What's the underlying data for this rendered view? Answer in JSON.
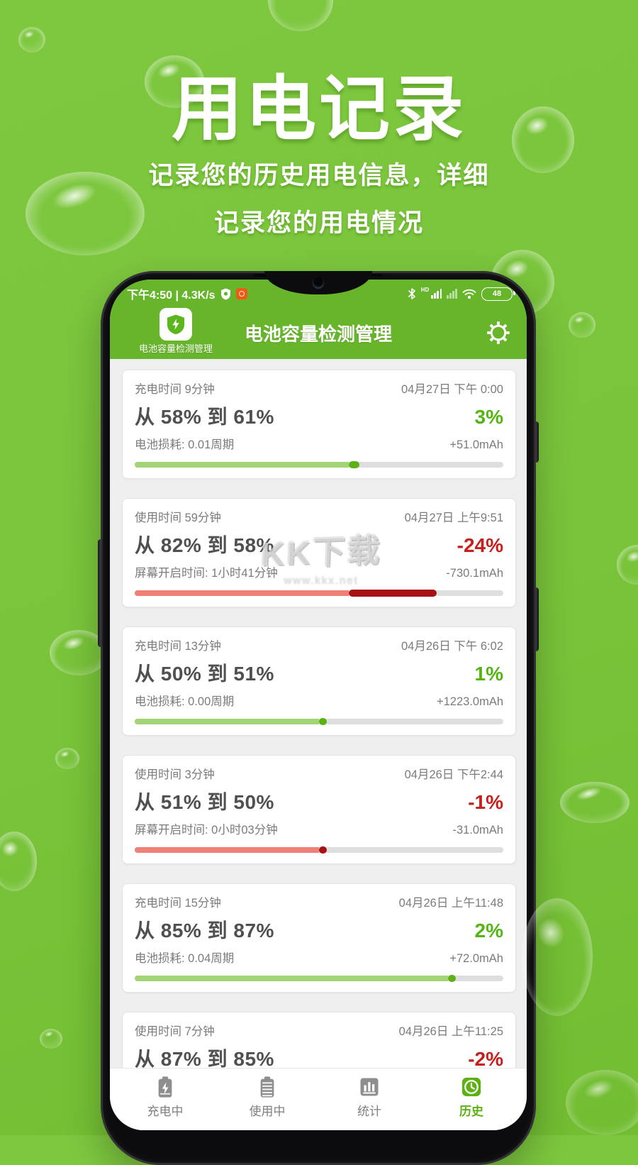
{
  "poster": {
    "title": "用电记录",
    "subtitle_line1": "记录您的历史用电信息，详细",
    "subtitle_line2": "记录您的用电情况",
    "bg_color": "#79c43a"
  },
  "watermark": {
    "line1": "KK下载",
    "line2": "www.kkx.net"
  },
  "phone": {
    "status_bar": {
      "left_text": "下午4:50 | 4.3K/s",
      "hd_label": "HD",
      "battery_level": "48"
    },
    "app_bar": {
      "title": "电池容量检测管理",
      "launcher_caption": "电池容量检测管理"
    },
    "records": [
      {
        "duration": "充电时间 9分钟",
        "date": "04月27日 下午 0:00",
        "range": "从 58% 到 61%",
        "delta": "3%",
        "trend": "up",
        "detail": "电池损耗: 0.01周期",
        "amount": "+51.0mAh",
        "from": 58,
        "to": 61,
        "bar": true
      },
      {
        "duration": "使用时间 59分钟",
        "date": "04月27日 上午9:51",
        "range": "从 82% 到 58%",
        "delta": "-24%",
        "trend": "down",
        "detail": "屏幕开启时间: 1小时41分钟",
        "amount": "-730.1mAh",
        "from": 82,
        "to": 58,
        "bar": true
      },
      {
        "duration": "充电时间 13分钟",
        "date": "04月26日 下午 6:02",
        "range": "从 50% 到 51%",
        "delta": "1%",
        "trend": "up",
        "detail": "电池损耗: 0.00周期",
        "amount": "+1223.0mAh",
        "from": 50,
        "to": 51,
        "bar": true
      },
      {
        "duration": "使用时间 3分钟",
        "date": "04月26日 下午2:44",
        "range": "从 51% 到 50%",
        "delta": "-1%",
        "trend": "down",
        "detail": "屏幕开启时间: 0小时03分钟",
        "amount": "-31.0mAh",
        "from": 51,
        "to": 50,
        "bar": true
      },
      {
        "duration": "充电时间 15分钟",
        "date": "04月26日 上午11:48",
        "range": "从 85% 到 87%",
        "delta": "2%",
        "trend": "up",
        "detail": "电池损耗: 0.04周期",
        "amount": "+72.0mAh",
        "from": 85,
        "to": 87,
        "bar": true
      },
      {
        "duration": "使用时间 7分钟",
        "date": "04月26日 上午11:25",
        "range": "从 87% 到 85%",
        "delta": "-2%",
        "trend": "down",
        "detail": "",
        "amount": "",
        "from": 87,
        "to": 85,
        "bar": false
      }
    ],
    "nav": [
      {
        "label": "充电中",
        "icon": "battery-charging-icon",
        "active": false
      },
      {
        "label": "使用中",
        "icon": "battery-icon",
        "active": false
      },
      {
        "label": "统计",
        "icon": "stats-icon",
        "active": false
      },
      {
        "label": "历史",
        "icon": "history-clock-icon",
        "active": true
      }
    ]
  },
  "colors": {
    "poster_green": "#79c43a",
    "appbar_green": "#67b52b",
    "delta_up_green": "#54b512",
    "delta_down_red": "#c3201e",
    "bar_light_green": "#a3d478",
    "bar_dark_green": "#5db114",
    "bar_light_red": "#ee8076",
    "bar_dark_red": "#a81114"
  }
}
